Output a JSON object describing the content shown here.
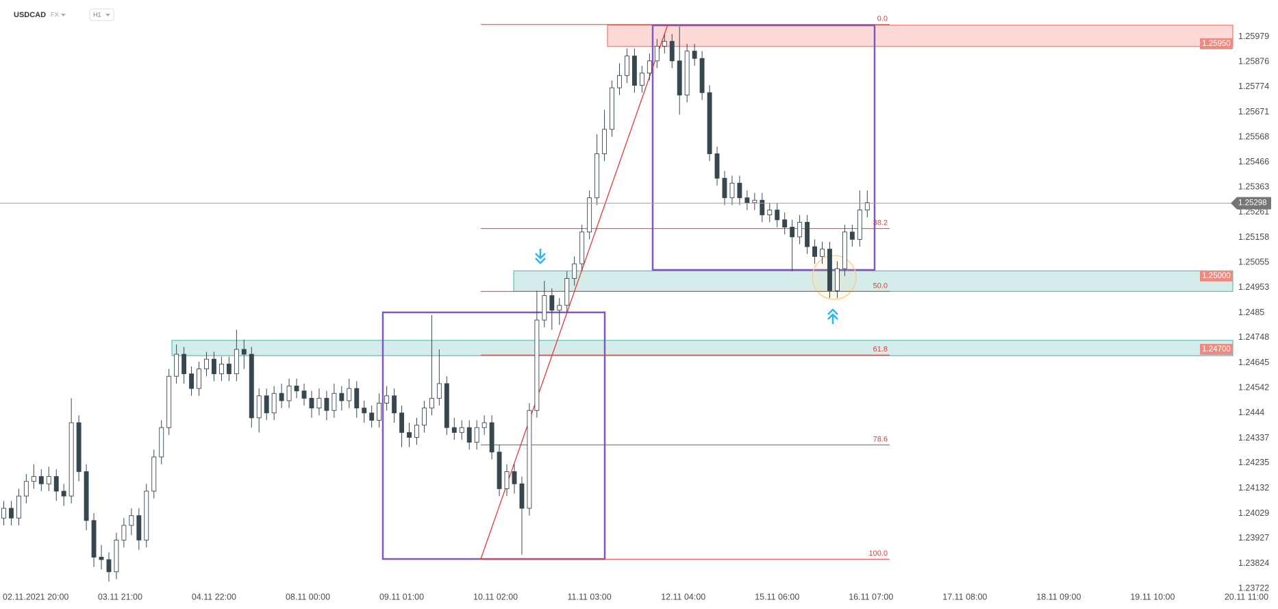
{
  "header": {
    "symbol": "USDCAD",
    "market": "FX",
    "interval": "H1"
  },
  "chart_data": {
    "type": "candlestick",
    "up_color": "#ffffff",
    "down_color": "#37474f",
    "outline_color": "#37474f",
    "xlim": [
      -0.5,
      169.7
    ],
    "ylim": [
      1.23638,
      1.26129
    ],
    "xticks": [
      {
        "value": 3,
        "label": "02.11.2021  20:00"
      },
      {
        "value": 15.5,
        "label": "03.11  21:00"
      },
      {
        "value": 28,
        "label": "04.11  22:00"
      },
      {
        "value": 40.5,
        "label": "08.11  00:00"
      },
      {
        "value": 53,
        "label": "09.11  01:00"
      },
      {
        "value": 65.5,
        "label": "10.11  02:00"
      },
      {
        "value": 78,
        "label": "11.11  03:00"
      },
      {
        "value": 90.5,
        "label": "12.11  04:00"
      },
      {
        "value": 103,
        "label": "15.11  06:00"
      },
      {
        "value": 115.5,
        "label": "16.11  07:00"
      },
      {
        "value": 128,
        "label": "17.11  08:00"
      },
      {
        "value": 140.5,
        "label": "18.11  09:00"
      },
      {
        "value": 153,
        "label": "19.11  10:00"
      },
      {
        "value": 165.5,
        "label": "20.11  11:00"
      }
    ],
    "yticks": [
      1.25979,
      1.25876,
      1.25774,
      1.25671,
      1.25568,
      1.25466,
      1.25363,
      1.25261,
      1.25158,
      1.25055,
      1.24953,
      1.2485,
      1.24748,
      1.24645,
      1.24542,
      1.2444,
      1.24337,
      1.24235,
      1.24132,
      1.24029,
      1.23927,
      1.23824,
      1.23722
    ],
    "open": [
      1.2401,
      1.2405,
      1.2401,
      1.241,
      1.2416,
      1.2418,
      1.2415,
      1.2418,
      1.2412,
      1.241,
      1.244,
      1.242,
      1.24,
      1.2385,
      1.2384,
      1.2379,
      1.2392,
      1.2398,
      1.2402,
      1.2392,
      1.2412,
      1.2426,
      1.2438,
      1.2459,
      1.2468,
      1.246,
      1.2454,
      1.2462,
      1.2466,
      1.246,
      1.2464,
      1.246,
      1.247,
      1.2468,
      1.2442,
      1.2451,
      1.2444,
      1.2452,
      1.2449,
      1.2455,
      1.2453,
      1.245,
      1.2446,
      1.245,
      1.2445,
      1.2452,
      1.2449,
      1.2454,
      1.2446,
      1.2444,
      1.2441,
      1.2448,
      1.2451,
      1.2444,
      1.2436,
      1.2434,
      1.2439,
      1.2446,
      1.245,
      1.2456,
      1.2438,
      1.2436,
      1.2438,
      1.2432,
      1.2438,
      1.244,
      1.2428,
      1.2413,
      1.242,
      1.2415,
      1.2405,
      1.2445,
      1.2482,
      1.2492,
      1.2486,
      1.2488,
      1.2499,
      1.2505,
      1.2518,
      1.2532,
      1.255,
      1.256,
      1.2577,
      1.2582,
      1.259,
      1.2578,
      1.2583,
      1.2588,
      1.2594,
      1.2596,
      1.2588,
      1.2574,
      1.2592,
      1.2589,
      1.2575,
      1.255,
      1.254,
      1.2532,
      1.2538,
      1.2532,
      1.253,
      1.2531,
      1.2525,
      1.2527,
      1.2523,
      1.252,
      1.2516,
      1.2522,
      1.2512,
      1.2508,
      1.2511,
      1.2494,
      1.2503,
      1.2518,
      1.2515,
      1.2527
    ],
    "high": [
      1.2408,
      1.2408,
      1.2413,
      1.2419,
      1.2423,
      1.2421,
      1.2422,
      1.2421,
      1.2415,
      1.245,
      1.2443,
      1.2423,
      1.2403,
      1.239,
      1.2387,
      1.2395,
      1.2401,
      1.2405,
      1.2405,
      1.2415,
      1.2429,
      1.2441,
      1.2462,
      1.2472,
      1.2471,
      1.2463,
      1.2465,
      1.2469,
      1.2469,
      1.2467,
      1.2467,
      1.2478,
      1.2474,
      1.2471,
      1.2454,
      1.2454,
      1.2455,
      1.2456,
      1.2458,
      1.2458,
      1.2456,
      1.2453,
      1.2454,
      1.2453,
      1.2456,
      1.2455,
      1.2458,
      1.2457,
      1.2449,
      1.2447,
      1.2452,
      1.2455,
      1.2454,
      1.2447,
      1.244,
      1.2442,
      1.2449,
      1.2484,
      1.247,
      1.2459,
      1.2442,
      1.2441,
      1.2441,
      1.2441,
      1.2443,
      1.2443,
      1.2431,
      1.2423,
      1.2423,
      1.2418,
      1.2448,
      1.2494,
      1.2498,
      1.2495,
      1.2491,
      1.2502,
      1.2508,
      1.2521,
      1.2535,
      1.2558,
      1.2568,
      1.258,
      1.2587,
      1.2593,
      1.2593,
      1.2586,
      1.2591,
      1.2597,
      1.2599,
      1.2599,
      1.2602,
      1.2595,
      1.2595,
      1.2592,
      1.2578,
      1.2553,
      1.2543,
      1.2541,
      1.2541,
      1.2535,
      1.2534,
      1.2534,
      1.253,
      1.253,
      1.2526,
      1.2523,
      1.2525,
      1.2525,
      1.2515,
      1.2514,
      1.2514,
      1.2506,
      1.2521,
      1.2521,
      1.2535,
      1.2535
    ],
    "low": [
      1.2398,
      1.2398,
      1.2398,
      1.2407,
      1.2413,
      1.2412,
      1.2412,
      1.2408,
      1.2406,
      1.2407,
      1.2416,
      1.2396,
      1.2381,
      1.238,
      1.2375,
      1.2376,
      1.2389,
      1.2394,
      1.2388,
      1.2389,
      1.2409,
      1.2423,
      1.2435,
      1.2456,
      1.2456,
      1.2451,
      1.2451,
      1.2459,
      1.2457,
      1.2457,
      1.2457,
      1.2457,
      1.2462,
      1.2438,
      1.2436,
      1.2441,
      1.2441,
      1.2446,
      1.2446,
      1.245,
      1.2447,
      1.2442,
      1.2443,
      1.2441,
      1.2442,
      1.2445,
      1.2446,
      1.2442,
      1.244,
      1.2438,
      1.2438,
      1.2445,
      1.244,
      1.243,
      1.243,
      1.2431,
      1.2436,
      1.2443,
      1.2447,
      1.2435,
      1.2433,
      1.2433,
      1.2429,
      1.2429,
      1.2435,
      1.2425,
      1.241,
      1.241,
      1.2411,
      1.2386,
      1.2402,
      1.2442,
      1.2479,
      1.2478,
      1.248,
      1.2485,
      1.2496,
      1.2502,
      1.2515,
      1.2529,
      1.2547,
      1.2557,
      1.2574,
      1.2579,
      1.2575,
      1.2575,
      1.258,
      1.2585,
      1.2591,
      1.2585,
      1.2566,
      1.2571,
      1.2586,
      1.2572,
      1.2547,
      1.2537,
      1.2529,
      1.2529,
      1.2529,
      1.2527,
      1.2527,
      1.2522,
      1.2522,
      1.252,
      1.2517,
      1.2502,
      1.2513,
      1.2509,
      1.2505,
      1.2505,
      1.2491,
      1.2491,
      1.25,
      1.2512,
      1.2512,
      1.2524
    ],
    "close": [
      1.2405,
      1.2401,
      1.241,
      1.2416,
      1.2418,
      1.2415,
      1.2418,
      1.2412,
      1.241,
      1.244,
      1.242,
      1.24,
      1.2385,
      1.2384,
      1.2379,
      1.2392,
      1.2398,
      1.2402,
      1.2392,
      1.2412,
      1.2426,
      1.2438,
      1.2459,
      1.2468,
      1.246,
      1.2454,
      1.2462,
      1.2466,
      1.246,
      1.2464,
      1.246,
      1.247,
      1.2468,
      1.2442,
      1.2451,
      1.2444,
      1.2452,
      1.2449,
      1.2455,
      1.2453,
      1.245,
      1.2446,
      1.245,
      1.2445,
      1.2452,
      1.2449,
      1.2454,
      1.2446,
      1.2444,
      1.2441,
      1.2448,
      1.2451,
      1.2444,
      1.2436,
      1.2434,
      1.2439,
      1.2446,
      1.245,
      1.2456,
      1.2438,
      1.2436,
      1.2438,
      1.2432,
      1.2438,
      1.244,
      1.2428,
      1.2413,
      1.242,
      1.2415,
      1.2405,
      1.2445,
      1.2482,
      1.2492,
      1.2486,
      1.2488,
      1.2499,
      1.2505,
      1.2518,
      1.2532,
      1.255,
      1.256,
      1.2577,
      1.2582,
      1.259,
      1.2578,
      1.2583,
      1.2588,
      1.2594,
      1.2596,
      1.2588,
      1.2574,
      1.2592,
      1.2589,
      1.2575,
      1.255,
      1.254,
      1.2532,
      1.2538,
      1.2532,
      1.253,
      1.2531,
      1.2525,
      1.2527,
      1.2523,
      1.252,
      1.2516,
      1.2522,
      1.2512,
      1.2508,
      1.2511,
      1.2494,
      1.2503,
      1.2518,
      1.2515,
      1.2527,
      1.253
    ],
    "zones": [
      {
        "high": 1.26026,
        "low": 1.25939,
        "color": "#f44336",
        "label": {
          "value": 1.2595,
          "label": "1.25950"
        }
      },
      {
        "high": 1.25021,
        "low": 1.24937,
        "color": "#26a69a",
        "label": {
          "value": 1.25,
          "label": "1.25000"
        }
      },
      {
        "high": 1.24737,
        "low": 1.24674,
        "color": "#26a69a",
        "label": {
          "value": 1.247,
          "label": "1.24700"
        }
      }
    ],
    "fib_levels": [
      {
        "label": "0.0",
        "price": 1.26029
      },
      {
        "label": "38.2",
        "price": 1.25194
      },
      {
        "label": "50.0",
        "price": 1.24937
      },
      {
        "label": "61.8",
        "price": 1.24677
      },
      {
        "label": "78.6",
        "price": 1.24309
      },
      {
        "label": "100.0",
        "price": 1.23842
      }
    ],
    "fib_color": "#e53935",
    "last_price": 1.25298
  }
}
